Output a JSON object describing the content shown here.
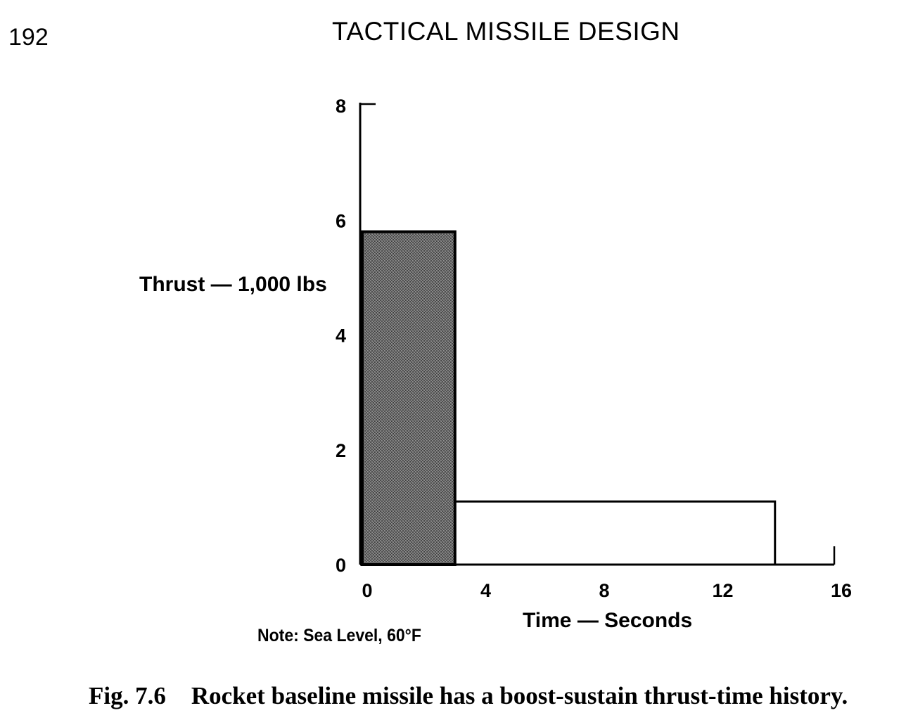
{
  "page": {
    "page_number": "192",
    "running_head": "TACTICAL MISSILE DESIGN"
  },
  "note": "Note: Sea Level, 60°F",
  "caption": {
    "figure_number": "Fig. 7.6",
    "text": "Rocket baseline missile has a boost-sustain thrust-time history."
  },
  "colors": {
    "boost_fill": "#6e6e6e",
    "line": "#000000",
    "background": "#ffffff"
  },
  "chart_data": {
    "type": "area",
    "title": "",
    "xlabel": "Time — Seconds",
    "ylabel": "Thrust — 1,000 lbs",
    "xlim": [
      0,
      16
    ],
    "ylim": [
      0,
      8
    ],
    "x_ticks": [
      "0",
      "4",
      "8",
      "12",
      "16"
    ],
    "y_ticks": [
      "0",
      "2",
      "4",
      "6",
      "8"
    ],
    "grid": false,
    "legend": "none",
    "series": [
      {
        "x": [
          0,
          0,
          3.2,
          3.2,
          14,
          14,
          16
        ],
        "y": [
          0,
          5.8,
          5.8,
          1.1,
          1.1,
          0,
          0
        ]
      }
    ],
    "boost_phase": {
      "t_start": 0,
      "t_end": 3.2,
      "thrust": 5.8,
      "shaded": true
    },
    "sustain_phase": {
      "t_start": 3.2,
      "t_end": 14,
      "thrust": 1.1,
      "shaded": false
    }
  }
}
